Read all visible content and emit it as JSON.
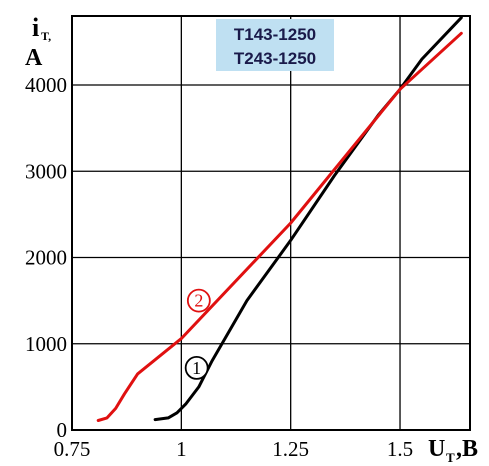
{
  "chart_data": {
    "type": "line",
    "title_lines": [
      "T143-1250",
      "T243-1250"
    ],
    "title_bg": "#bfe0f2",
    "ylabel_main": "i",
    "ylabel_sub": "T,",
    "ylabel_unit": "A",
    "xlabel_main": "U",
    "xlabel_sub": "T",
    "xlabel_unit": ",B",
    "xlim": [
      0.75,
      1.66
    ],
    "ylim": [
      0,
      4800
    ],
    "x_ticks": [
      0.75,
      1,
      1.25,
      1.5
    ],
    "x_tick_labels": [
      "0.75",
      "1",
      "1.25",
      "1.5"
    ],
    "y_ticks": [
      0,
      1000,
      2000,
      3000,
      4000
    ],
    "y_tick_labels": [
      "0",
      "1000",
      "2000",
      "3000",
      "4000"
    ],
    "grid": true,
    "series": [
      {
        "name": "1",
        "color": "#000000",
        "points": [
          [
            0.94,
            120
          ],
          [
            0.97,
            140
          ],
          [
            0.99,
            200
          ],
          [
            1.01,
            300
          ],
          [
            1.04,
            500
          ],
          [
            1.07,
            800
          ],
          [
            1.15,
            1500
          ],
          [
            1.25,
            2200
          ],
          [
            1.35,
            2950
          ],
          [
            1.45,
            3650
          ],
          [
            1.5,
            3950
          ],
          [
            1.55,
            4300
          ],
          [
            1.64,
            4780
          ]
        ],
        "marker": [
          1.035,
          720
        ]
      },
      {
        "name": "2",
        "color": "#e01010",
        "points": [
          [
            0.81,
            110
          ],
          [
            0.83,
            140
          ],
          [
            0.85,
            250
          ],
          [
            0.87,
            420
          ],
          [
            0.9,
            650
          ],
          [
            1.0,
            1060
          ],
          [
            1.25,
            2400
          ],
          [
            1.5,
            3950
          ],
          [
            1.64,
            4600
          ]
        ],
        "marker": [
          1.04,
          1500
        ]
      }
    ]
  }
}
